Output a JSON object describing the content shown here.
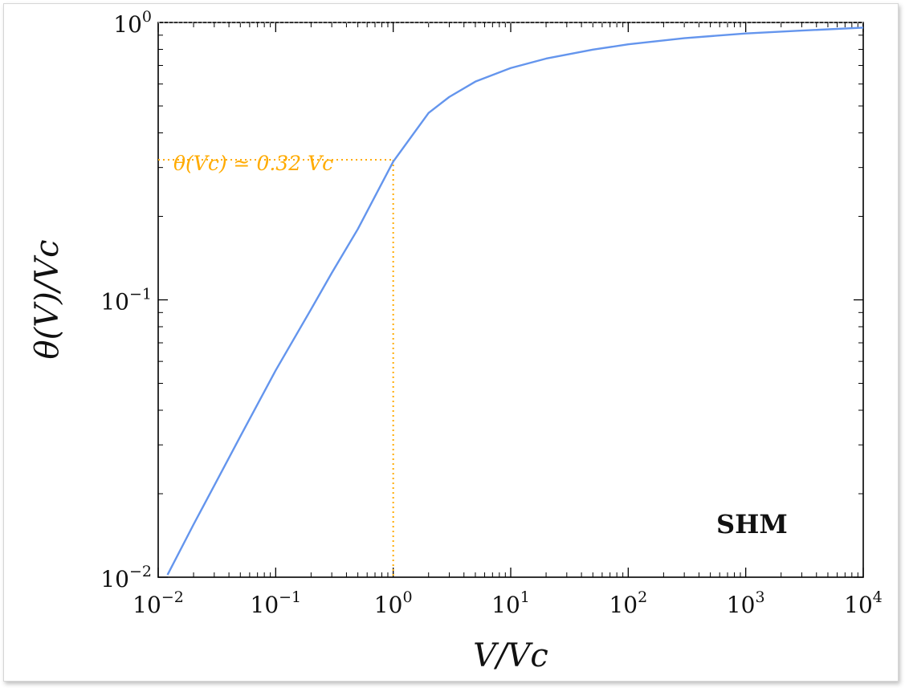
{
  "chart_data": {
    "type": "line",
    "xscale": "log",
    "yscale": "log",
    "xlim": [
      0.01,
      10000
    ],
    "ylim": [
      0.01,
      1
    ],
    "xlabel": "V/Vc",
    "ylabel": "θ(V)/Vc",
    "xticks": [
      {
        "value": 0.01,
        "base": "10",
        "exp": "−2"
      },
      {
        "value": 0.1,
        "base": "10",
        "exp": "−1"
      },
      {
        "value": 1,
        "base": "10",
        "exp": "0"
      },
      {
        "value": 10,
        "base": "10",
        "exp": "1"
      },
      {
        "value": 100,
        "base": "10",
        "exp": "2"
      },
      {
        "value": 1000,
        "base": "10",
        "exp": "3"
      },
      {
        "value": 10000,
        "base": "10",
        "exp": "4"
      }
    ],
    "yticks": [
      {
        "value": 0.01,
        "base": "10",
        "exp": "−2"
      },
      {
        "value": 0.1,
        "base": "10",
        "exp": "−1"
      },
      {
        "value": 1,
        "base": "10",
        "exp": "0"
      }
    ],
    "series": [
      {
        "color": "#6495ed",
        "x": [
          0.012,
          0.02,
          0.03,
          0.05,
          0.1,
          0.2,
          0.3,
          0.5,
          1,
          2,
          3,
          5,
          10,
          20,
          50,
          100,
          300,
          1000,
          3000,
          10000
        ],
        "y": [
          0.0102,
          0.0155,
          0.0214,
          0.0322,
          0.0557,
          0.0925,
          0.125,
          0.18,
          0.315,
          0.472,
          0.539,
          0.612,
          0.685,
          0.741,
          0.798,
          0.834,
          0.878,
          0.913,
          0.935,
          0.958
        ]
      }
    ],
    "reference_lines": [
      {
        "axis": "y",
        "value": 1,
        "color": "#888888",
        "style": "dotted"
      }
    ],
    "marker": {
      "x": 1,
      "y": 0.32,
      "color": "#ffab00",
      "style": "dotted"
    },
    "annotations": [
      {
        "text": "θ(Vc) ≃ 0.32 Vc",
        "color": "#ffab00"
      },
      {
        "text": "SHM",
        "color": "#111111"
      }
    ],
    "grid": false,
    "legend": "none"
  }
}
